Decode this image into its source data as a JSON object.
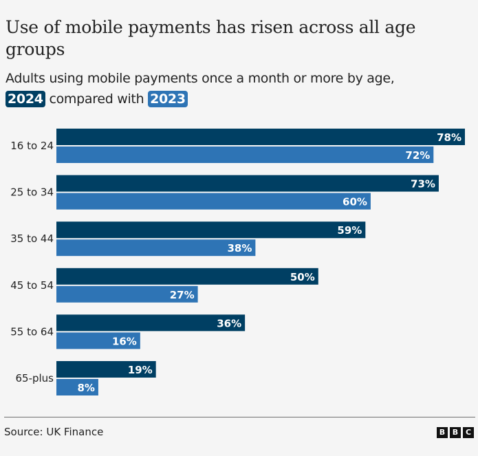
{
  "title": "Use of mobile payments has risen across all age groups",
  "subtitle": {
    "text": "Adults using mobile payments once a month or more by age,",
    "year_a": "2024",
    "middle": "compared with",
    "year_b": "2023"
  },
  "source": "Source: UK Finance",
  "logo": [
    "B",
    "B",
    "C"
  ],
  "colors": {
    "2024": "#003f63",
    "2023": "#2e74b5"
  },
  "chart_data": {
    "type": "bar",
    "orientation": "horizontal",
    "title": "Use of mobile payments has risen across all age groups",
    "subtitle": "Adults using mobile payments once a month or more by age, 2024 compared with 2023",
    "categories": [
      "16 to 24",
      "25 to 34",
      "35 to 44",
      "45 to 54",
      "55 to 64",
      "65-plus"
    ],
    "series": [
      {
        "name": "2024",
        "color": "#003f63",
        "values": [
          78,
          73,
          59,
          50,
          36,
          19
        ]
      },
      {
        "name": "2023",
        "color": "#2e74b5",
        "values": [
          72,
          60,
          38,
          27,
          16,
          8
        ]
      }
    ],
    "unit": "%",
    "xlim": [
      0,
      78
    ],
    "grid": false,
    "legend": "in subtitle"
  }
}
